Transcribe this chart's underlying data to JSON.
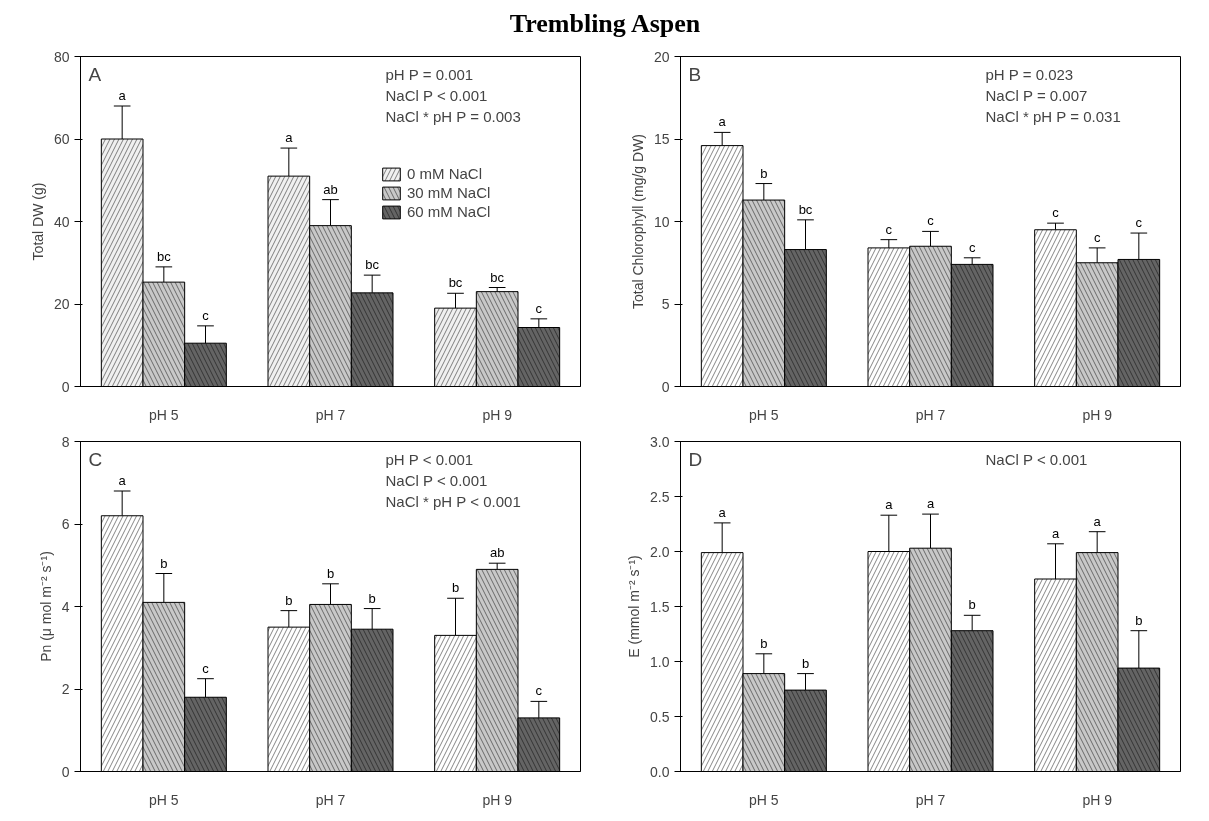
{
  "chart_data": [
    {
      "type": "other",
      "title": "Trembling Aspen"
    },
    {
      "type": "bar",
      "title": "A",
      "ylabel": "Total DW (g)",
      "categories": [
        "pH 5",
        "pH 7",
        "pH 9"
      ],
      "ylim": [
        0,
        80
      ],
      "yticks": [
        0,
        20,
        40,
        60,
        80
      ],
      "legend": "top right",
      "annotations": [
        "pH P = 0.001",
        "NaCl P < 0.001",
        "NaCl * pH P = 0.003"
      ],
      "series": [
        {
          "name": "0 mM NaCl",
          "color": "#f0f0f0",
          "values": [
            60,
            51,
            19
          ],
          "errors": [
            8,
            6.8,
            3.6
          ],
          "value_labels": [
            "a",
            "a",
            "bc"
          ]
        },
        {
          "name": "30 mM NaCl",
          "color": "#c8c8c8",
          "values": [
            25.3,
            39,
            23
          ],
          "errors": [
            3.7,
            6.3,
            1
          ],
          "value_labels": [
            "bc",
            "ab",
            "bc"
          ]
        },
        {
          "name": "60 mM NaCl",
          "color": "#646464",
          "values": [
            10.5,
            22.7,
            14.3
          ],
          "errors": [
            4.2,
            4.3,
            2.1
          ],
          "value_labels": [
            "c",
            "bc",
            "c"
          ]
        }
      ]
    },
    {
      "type": "bar",
      "title": "B",
      "ylabel": "Total Chlorophyll (mg/g DW)",
      "categories": [
        "pH 5",
        "pH 7",
        "pH 9"
      ],
      "ylim": [
        0,
        20
      ],
      "yticks": [
        0,
        5,
        10,
        15,
        20
      ],
      "annotations": [
        "pH P = 0.023",
        "NaCl P = 0.007",
        "NaCl * pH P = 0.031"
      ],
      "series": [
        {
          "color": "#ffffff",
          "values": [
            14.6,
            8.4,
            9.5
          ],
          "errors": [
            0.8,
            0.5,
            0.4
          ],
          "value_labels": [
            "a",
            "c",
            "c"
          ]
        },
        {
          "color": "#c8c8c8",
          "values": [
            11.3,
            8.5,
            7.5
          ],
          "errors": [
            1.0,
            0.9,
            0.9
          ],
          "value_labels": [
            "b",
            "c",
            "c"
          ]
        },
        {
          "color": "#646464",
          "values": [
            8.3,
            7.4,
            7.7
          ],
          "errors": [
            1.8,
            0.4,
            1.6
          ],
          "value_labels": [
            "bc",
            "c",
            "c"
          ]
        }
      ]
    },
    {
      "type": "bar",
      "title": "C",
      "ylabel": "Pn (μ mol m⁻² s⁻¹)",
      "categories": [
        "pH 5",
        "pH 7",
        "pH 9"
      ],
      "ylim": [
        0,
        8
      ],
      "yticks": [
        0,
        2,
        4,
        6,
        8
      ],
      "annotations": [
        "pH P < 0.001",
        "NaCl P < 0.001",
        "NaCl * pH P < 0.001"
      ],
      "series": [
        {
          "color": "#ffffff",
          "values": [
            6.2,
            3.5,
            3.3
          ],
          "errors": [
            0.6,
            0.4,
            0.9
          ],
          "value_labels": [
            "a",
            "b",
            "b"
          ]
        },
        {
          "color": "#c8c8c8",
          "values": [
            4.1,
            4.05,
            4.9
          ],
          "errors": [
            0.7,
            0.5,
            0.15
          ],
          "value_labels": [
            "b",
            "b",
            "ab"
          ]
        },
        {
          "color": "#646464",
          "values": [
            1.8,
            3.45,
            1.3
          ],
          "errors": [
            0.45,
            0.5,
            0.4
          ],
          "value_labels": [
            "c",
            "b",
            "c"
          ]
        }
      ]
    },
    {
      "type": "bar",
      "title": "D",
      "ylabel": "E (mmol m⁻² s⁻¹)",
      "categories": [
        "pH 5",
        "pH 7",
        "pH 9"
      ],
      "ylim": [
        0,
        3
      ],
      "yticks": [
        {
          "value": 0,
          "label": "0.0"
        },
        0.5,
        {
          "value": 1,
          "label": "1.0"
        },
        1.5,
        {
          "value": 2,
          "label": "2.0"
        },
        2.5,
        {
          "value": 3,
          "label": "3.0"
        }
      ],
      "annotations": [
        "NaCl P < 0.001"
      ],
      "series": [
        {
          "color": "#ffffff",
          "values": [
            1.99,
            2.0,
            1.75
          ],
          "errors": [
            0.27,
            0.33,
            0.32
          ],
          "value_labels": [
            "a",
            "a",
            "a"
          ]
        },
        {
          "color": "#c8c8c8",
          "values": [
            0.89,
            2.03,
            1.99
          ],
          "errors": [
            0.18,
            0.31,
            0.19
          ],
          "value_labels": [
            "b",
            "a",
            "a"
          ]
        },
        {
          "color": "#646464",
          "values": [
            0.74,
            1.28,
            0.94
          ],
          "errors": [
            0.15,
            0.14,
            0.34
          ],
          "value_labels": [
            "b",
            "b",
            "b"
          ]
        }
      ]
    }
  ]
}
